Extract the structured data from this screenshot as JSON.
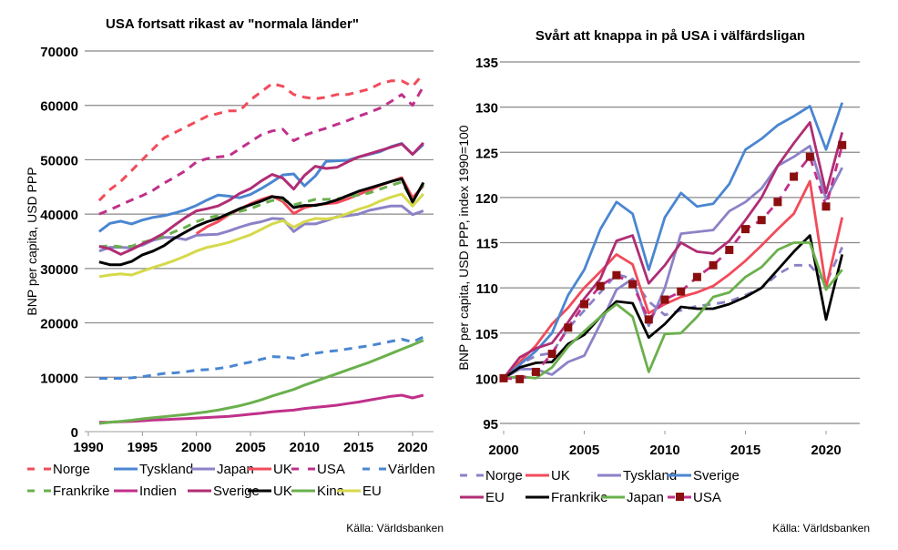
{
  "chart_data": [
    {
      "type": "line",
      "title": "USA fortsatt rikast av \"normala länder\"",
      "xlabel": "",
      "ylabel": "BNP per capita, USD PPP",
      "xlim": [
        1990,
        2021
      ],
      "ylim": [
        0,
        70000
      ],
      "yticks": [
        0,
        10000,
        20000,
        30000,
        40000,
        50000,
        60000,
        70000
      ],
      "xticks": [
        1990,
        1995,
        2000,
        2005,
        2010,
        2015,
        2020
      ],
      "grid": true,
      "legend_position": "bottom",
      "source": "Källa: Världsbanken",
      "x": [
        1990,
        1991,
        1992,
        1993,
        1994,
        1995,
        1996,
        1997,
        1998,
        1999,
        2000,
        2001,
        2002,
        2003,
        2004,
        2005,
        2006,
        2007,
        2008,
        2009,
        2010,
        2011,
        2012,
        2013,
        2014,
        2015,
        2016,
        2017,
        2018,
        2019,
        2020,
        2021
      ],
      "series": [
        {
          "name": "Norge",
          "color": "#f24b5a",
          "dash": true,
          "values": [
            null,
            42500,
            44500,
            46000,
            48000,
            50000,
            52000,
            54000,
            55000,
            56000,
            57000,
            58000,
            58500,
            59000,
            59000,
            61000,
            62500,
            64000,
            63500,
            62000,
            61500,
            61200,
            61500,
            62000,
            62000,
            62500,
            63000,
            64000,
            64500,
            64500,
            63500,
            65800
          ]
        },
        {
          "name": "Tyskland",
          "color": "#4a86d1",
          "dash": false,
          "values": [
            null,
            36800,
            38300,
            38700,
            38200,
            38900,
            39400,
            39700,
            40200,
            40800,
            41600,
            42600,
            43500,
            43300,
            43000,
            43600,
            44700,
            45900,
            47200,
            47400,
            45200,
            47000,
            49700,
            49800,
            49900,
            50500,
            51000,
            51500,
            52400,
            53000,
            51000,
            52800
          ]
        },
        {
          "name": "Japan",
          "color": "#8b82c7",
          "dash": false,
          "values": [
            null,
            33200,
            33900,
            33900,
            33800,
            34300,
            35200,
            35700,
            35700,
            35300,
            36100,
            36200,
            36300,
            36900,
            37600,
            38200,
            38600,
            39200,
            39100,
            36800,
            38200,
            38200,
            38800,
            39500,
            39700,
            40000,
            40700,
            41100,
            41500,
            41500,
            39900,
            40600
          ]
        },
        {
          "name": "UK",
          "color": "#f24b5a",
          "dash": false,
          "values": [
            null,
            null,
            null,
            null,
            null,
            null,
            null,
            null,
            null,
            null,
            36400,
            37700,
            38600,
            39900,
            40900,
            41900,
            42700,
            43300,
            42300,
            40100,
            41200,
            41700,
            41900,
            42100,
            42800,
            43600,
            44400,
            45300,
            46000,
            46700,
            43000,
            45200
          ]
        },
        {
          "name": "USA",
          "color": "#c0308a",
          "dash": true,
          "values": [
            null,
            40000,
            40800,
            41700,
            42600,
            43400,
            44400,
            45700,
            46800,
            48000,
            49600,
            50200,
            50500,
            50700,
            52000,
            53300,
            54600,
            55300,
            55600,
            53500,
            54500,
            55200,
            55800,
            56500,
            57200,
            58000,
            58700,
            59500,
            60700,
            62000,
            60000,
            63500
          ]
        },
        {
          "name": "Världen",
          "color": "#4a86d1",
          "dash": true,
          "values": [
            null,
            9800,
            9800,
            9800,
            9900,
            10100,
            10400,
            10700,
            10800,
            11000,
            11300,
            11400,
            11600,
            11900,
            12400,
            12800,
            13300,
            13800,
            13700,
            13500,
            14100,
            14400,
            14700,
            14900,
            15200,
            15500,
            15800,
            16200,
            16600,
            17000,
            16500,
            17400
          ]
        },
        {
          "name": "Frankrike",
          "color": "#6ab04c",
          "dash": true,
          "values": [
            null,
            34000,
            34200,
            34000,
            34100,
            34800,
            35300,
            35900,
            36800,
            37600,
            38600,
            39300,
            39700,
            39900,
            40500,
            41000,
            41800,
            42500,
            42700,
            41700,
            42200,
            42700,
            42700,
            42800,
            43100,
            43500,
            43900,
            44600,
            45300,
            45900,
            42400,
            45500
          ]
        },
        {
          "name": "Indien",
          "color": "#c0308a",
          "dash": false,
          "values": [
            null,
            1700,
            1750,
            1820,
            1900,
            2000,
            2120,
            2200,
            2300,
            2400,
            2500,
            2600,
            2700,
            2800,
            3000,
            3200,
            3400,
            3650,
            3800,
            3950,
            4250,
            4450,
            4650,
            4850,
            5150,
            5450,
            5800,
            6150,
            6500,
            6700,
            6200,
            6700
          ]
        },
        {
          "name": "Sverige",
          "color": "#b02d74",
          "dash": false,
          "values": [
            null,
            34100,
            33600,
            32600,
            33500,
            34500,
            35400,
            36500,
            38000,
            39400,
            40600,
            41000,
            41500,
            42500,
            43800,
            44700,
            46100,
            47300,
            46600,
            44600,
            47100,
            48800,
            48400,
            48600,
            49600,
            50500,
            51100,
            51700,
            52300,
            52900,
            51000,
            53100
          ]
        },
        {
          "name": "UK",
          "color": "#000000",
          "dash": false,
          "values": [
            null,
            31200,
            30700,
            30700,
            31300,
            32500,
            33200,
            34200,
            35600,
            36700,
            37800,
            38600,
            39200,
            40100,
            41000,
            41700,
            42400,
            43200,
            43000,
            41200,
            41600,
            41600,
            42000,
            42600,
            43400,
            44200,
            44800,
            45400,
            46000,
            46500,
            42200,
            45800
          ]
        },
        {
          "name": "Kina",
          "color": "#6ab04c",
          "dash": false,
          "values": [
            null,
            1500,
            1700,
            1900,
            2100,
            2350,
            2550,
            2750,
            2950,
            3150,
            3400,
            3650,
            3950,
            4350,
            4750,
            5250,
            5850,
            6550,
            7150,
            7750,
            8550,
            9250,
            9950,
            10650,
            11350,
            12050,
            12750,
            13550,
            14350,
            15150,
            15950,
            16800
          ]
        },
        {
          "name": "EU",
          "color": "#d6d94a",
          "dash": false,
          "values": [
            null,
            28500,
            28800,
            29000,
            28800,
            29500,
            30200,
            30800,
            31500,
            32300,
            33200,
            33900,
            34300,
            34800,
            35500,
            36200,
            37200,
            38200,
            38800,
            37600,
            38600,
            39200,
            39100,
            39400,
            40100,
            40900,
            41500,
            42400,
            43100,
            43700,
            41500,
            43700
          ]
        }
      ]
    },
    {
      "type": "line",
      "title": "Svårt att knappa in på USA i välfärdsligan",
      "xlabel": "",
      "ylabel": "BNP per capita, USD PPP, index 1990=100",
      "xlim": [
        2000,
        2021
      ],
      "ylim": [
        95,
        135
      ],
      "yticks": [
        95,
        100,
        105,
        110,
        115,
        120,
        125,
        130,
        135
      ],
      "xticks": [
        2000,
        2005,
        2010,
        2015,
        2020
      ],
      "grid": true,
      "legend_position": "bottom",
      "source": "Källa: Världsbanken",
      "x": [
        2000,
        2001,
        2002,
        2003,
        2004,
        2005,
        2006,
        2007,
        2008,
        2009,
        2010,
        2011,
        2012,
        2013,
        2014,
        2015,
        2016,
        2017,
        2018,
        2019,
        2020,
        2021
      ],
      "series": [
        {
          "name": "Norge",
          "color": "#8b82c7",
          "dash": true,
          "marker": false,
          "values": [
            100,
            101.5,
            102.5,
            102.8,
            105.5,
            107.5,
            109.5,
            111.5,
            111,
            108.5,
            107,
            107.5,
            108,
            108.2,
            108.5,
            109.2,
            110,
            111.5,
            112.5,
            112.5,
            110.5,
            114.5
          ]
        },
        {
          "name": "UK",
          "color": "#f24b5a",
          "dash": false,
          "marker": false,
          "values": [
            100,
            101.8,
            103.6,
            106,
            107.8,
            110,
            111.8,
            113.7,
            112.6,
            107.2,
            108.2,
            109,
            109.5,
            110.2,
            111.5,
            113,
            114.7,
            116.5,
            118.2,
            121.8,
            110,
            117.8
          ]
        },
        {
          "name": "Tyskland",
          "color": "#8b82c7",
          "dash": false,
          "marker": false,
          "values": [
            100,
            101,
            101,
            100.4,
            101.8,
            102.5,
            106,
            109.8,
            111,
            105.8,
            110,
            116,
            116.2,
            116.4,
            118.5,
            119.5,
            121,
            123.5,
            124.5,
            125.7,
            119.8,
            123.3
          ]
        },
        {
          "name": "Sverige",
          "color": "#4a86d1",
          "dash": false,
          "marker": false,
          "values": [
            100,
            101.5,
            103,
            105,
            109.2,
            112,
            116.5,
            119.5,
            118.2,
            112,
            117.8,
            120.5,
            119,
            119.3,
            121.5,
            125.3,
            126.5,
            128,
            129,
            130.1,
            125.3,
            130.5
          ]
        },
        {
          "name": "EU",
          "color": "#b02d74",
          "dash": false,
          "marker": false,
          "values": [
            100,
            102.3,
            103.3,
            103.9,
            106.2,
            108.8,
            111,
            115.2,
            115.8,
            110.5,
            112.5,
            115,
            114,
            113.8,
            115.2,
            117.5,
            120,
            123.5,
            126,
            128.3,
            120.5,
            127.2
          ]
        },
        {
          "name": "Frankrike",
          "color": "#000000",
          "dash": false,
          "marker": false,
          "values": [
            100,
            101.2,
            101.7,
            101.8,
            103.8,
            104.8,
            106.8,
            108.5,
            108.3,
            104.5,
            106,
            107.9,
            107.7,
            107.7,
            108.2,
            109,
            110,
            112,
            114,
            115.8,
            106.5,
            113.7
          ]
        },
        {
          "name": "Japan",
          "color": "#6ab04c",
          "dash": false,
          "marker": false,
          "values": [
            100,
            100.2,
            100,
            101.2,
            103.5,
            105.2,
            106.8,
            108.2,
            106.8,
            100.7,
            104.9,
            105,
            106.8,
            109,
            109.5,
            111.2,
            112.3,
            114.2,
            115,
            115,
            109.8,
            112
          ]
        },
        {
          "name": "USA",
          "color": "#c0308a",
          "dash": true,
          "marker": true,
          "marker_color": "#8b0f0f",
          "values": [
            100,
            99.9,
            100.7,
            102.7,
            105.6,
            108.2,
            110.2,
            111.4,
            110.4,
            106.5,
            108.7,
            109.6,
            111.2,
            112.5,
            114.2,
            116.5,
            117.5,
            119.5,
            122.3,
            124.5,
            119,
            125.8
          ]
        }
      ]
    }
  ],
  "legends": [
    {
      "items": [
        {
          "label": "Norge",
          "color": "#f24b5a",
          "style": "dash"
        },
        {
          "label": "Tyskland",
          "color": "#4a86d1",
          "style": "solid"
        },
        {
          "label": "Japan",
          "color": "#8b82c7",
          "style": "solid"
        },
        {
          "label": "UK",
          "color": "#f24b5a",
          "style": "solid"
        },
        {
          "label": "USA",
          "color": "#c0308a",
          "style": "dash"
        },
        {
          "label": "Världen",
          "color": "#4a86d1",
          "style": "dash"
        },
        {
          "label": "Frankrike",
          "color": "#6ab04c",
          "style": "dash"
        },
        {
          "label": "Indien",
          "color": "#c0308a",
          "style": "solid"
        },
        {
          "label": "Sverige",
          "color": "#b02d74",
          "style": "solid"
        },
        {
          "label": "UK",
          "color": "#000000",
          "style": "solid"
        },
        {
          "label": "Kina",
          "color": "#6ab04c",
          "style": "solid"
        },
        {
          "label": "EU",
          "color": "#d6d94a",
          "style": "solid"
        }
      ]
    },
    {
      "items": [
        {
          "label": "Norge",
          "color": "#8b82c7",
          "style": "dash"
        },
        {
          "label": "UK",
          "color": "#f24b5a",
          "style": "solid"
        },
        {
          "label": "Tyskland",
          "color": "#8b82c7",
          "style": "solid"
        },
        {
          "label": "Sverige",
          "color": "#4a86d1",
          "style": "solid"
        },
        {
          "label": "EU",
          "color": "#b02d74",
          "style": "solid"
        },
        {
          "label": "Frankrike",
          "color": "#000000",
          "style": "solid"
        },
        {
          "label": "Japan",
          "color": "#6ab04c",
          "style": "solid"
        },
        {
          "label": "USA",
          "color": "#c0308a",
          "style": "dash-marker",
          "marker_color": "#8b0f0f"
        }
      ]
    }
  ]
}
